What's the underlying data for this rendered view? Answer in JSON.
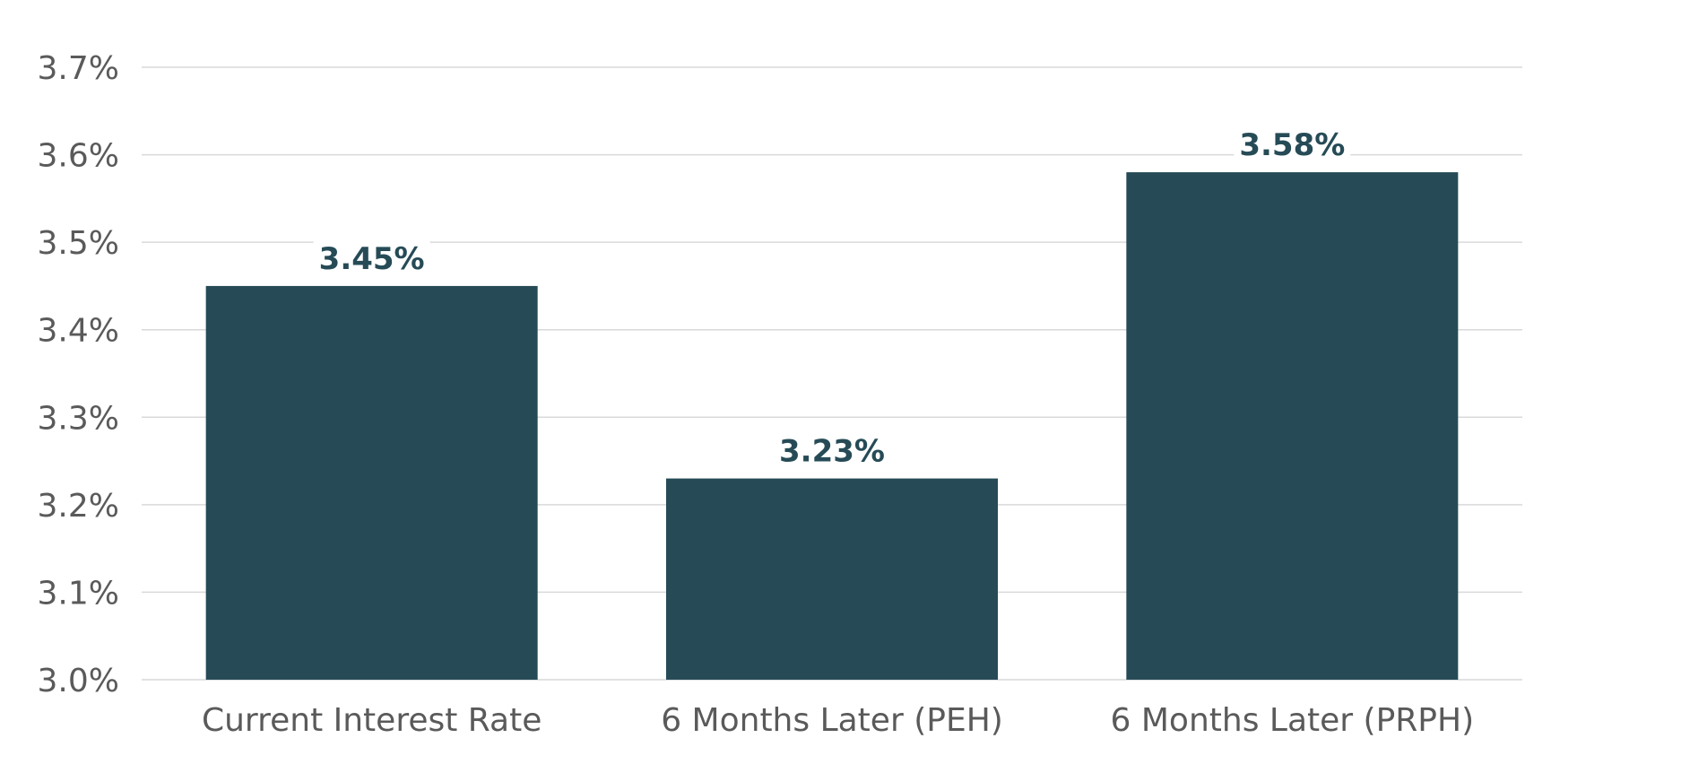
{
  "chart_data": {
    "type": "bar",
    "categories": [
      "Current Interest Rate",
      "6 Months Later (PEH)",
      "6 Months Later (PRPH)"
    ],
    "values": [
      3.45,
      3.23,
      3.58
    ],
    "data_labels": [
      "3.45%",
      "3.23%",
      "3.58%"
    ],
    "ylim": [
      3.0,
      3.7
    ],
    "yticks": [
      3.0,
      3.1,
      3.2,
      3.3,
      3.4,
      3.5,
      3.6,
      3.7
    ],
    "ytick_labels": [
      "3.0%",
      "3.1%",
      "3.2%",
      "3.3%",
      "3.4%",
      "3.5%",
      "3.6%",
      "3.7%"
    ],
    "title": "",
    "xlabel": "",
    "ylabel": "",
    "grid": true,
    "bar_color": "#264b57",
    "grid_color": "#d9d9d9",
    "label_color": "#264b57",
    "tick_color": "#5a5a5a"
  }
}
